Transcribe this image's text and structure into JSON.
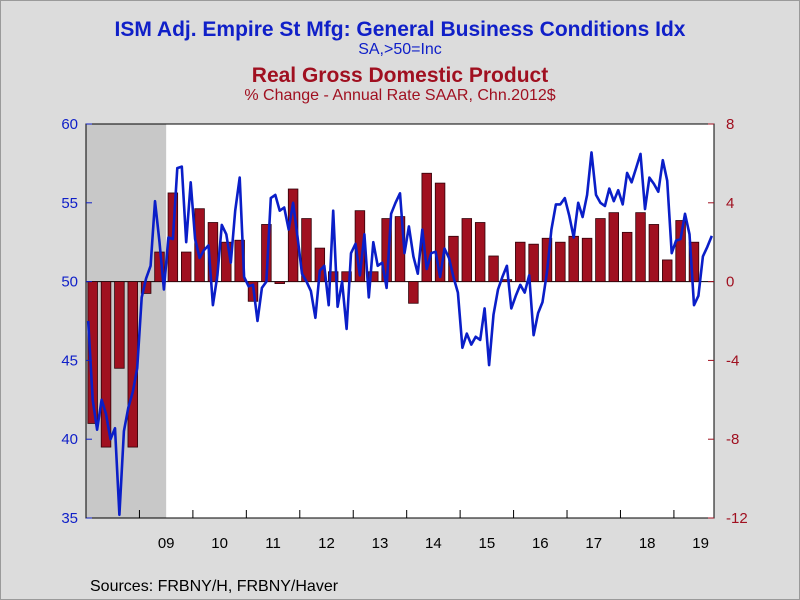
{
  "header": {
    "title_primary": "ISM Adj. Empire St Mfg: General Business Conditions Idx",
    "subtitle_primary": "SA,>50=Inc",
    "title_secondary": "Real Gross Domestic Product",
    "subtitle_secondary": "% Change - Annual Rate     SAAR, Chn.2012$"
  },
  "footer": {
    "sources": "Sources:  FRBNY/H, FRBNY/Haver"
  },
  "chart_data": {
    "type": "bar+line",
    "title": "ISM Adj. Empire St Mfg: General Business Conditions Idx",
    "recession_shading": {
      "start": 2008.0,
      "end": 2009.5
    },
    "x_range": [
      2008.0,
      2019.75
    ],
    "x_tick_labels": [
      "09",
      "10",
      "11",
      "12",
      "13",
      "14",
      "15",
      "16",
      "17",
      "18",
      "19"
    ],
    "left_axis": {
      "series": "Empire State Mfg Index",
      "ylim": [
        35,
        60
      ],
      "ticks": [
        35,
        40,
        45,
        50,
        55,
        60
      ],
      "color": "#1020c8"
    },
    "right_axis": {
      "series": "Real GDP % change",
      "ylim": [
        -12,
        8
      ],
      "ticks": [
        -12,
        -8,
        -4,
        0,
        4,
        8
      ],
      "color": "#a01020"
    },
    "gdp_bars": [
      {
        "q": "2008Q1",
        "value": -7.2
      },
      {
        "q": "2008Q2",
        "value": -8.4
      },
      {
        "q": "2008Q3",
        "value": -4.4
      },
      {
        "q": "2008Q4",
        "value": -8.4
      },
      {
        "q": "2009Q1",
        "value": -0.6
      },
      {
        "q": "2009Q2",
        "value": 1.5
      },
      {
        "q": "2009Q3",
        "value": 4.5
      },
      {
        "q": "2009Q4",
        "value": 1.5
      },
      {
        "q": "2010Q1",
        "value": 3.7
      },
      {
        "q": "2010Q2",
        "value": 3.0
      },
      {
        "q": "2010Q3",
        "value": 2.0
      },
      {
        "q": "2010Q4",
        "value": 2.1
      },
      {
        "q": "2011Q1",
        "value": -1.0
      },
      {
        "q": "2011Q2",
        "value": 2.9
      },
      {
        "q": "2011Q3",
        "value": -0.1
      },
      {
        "q": "2011Q4",
        "value": 4.7
      },
      {
        "q": "2012Q1",
        "value": 3.2
      },
      {
        "q": "2012Q2",
        "value": 1.7
      },
      {
        "q": "2012Q3",
        "value": 0.5
      },
      {
        "q": "2012Q4",
        "value": 0.5
      },
      {
        "q": "2013Q1",
        "value": 3.6
      },
      {
        "q": "2013Q2",
        "value": 0.5
      },
      {
        "q": "2013Q3",
        "value": 3.2
      },
      {
        "q": "2013Q4",
        "value": 3.3
      },
      {
        "q": "2014Q1",
        "value": -1.1
      },
      {
        "q": "2014Q2",
        "value": 5.5
      },
      {
        "q": "2014Q3",
        "value": 5.0
      },
      {
        "q": "2014Q4",
        "value": 2.3
      },
      {
        "q": "2015Q1",
        "value": 3.2
      },
      {
        "q": "2015Q2",
        "value": 3.0
      },
      {
        "q": "2015Q3",
        "value": 1.3
      },
      {
        "q": "2015Q4",
        "value": 0.1
      },
      {
        "q": "2016Q1",
        "value": 2.0
      },
      {
        "q": "2016Q2",
        "value": 1.9
      },
      {
        "q": "2016Q3",
        "value": 2.2
      },
      {
        "q": "2016Q4",
        "value": 2.0
      },
      {
        "q": "2017Q1",
        "value": 2.3
      },
      {
        "q": "2017Q2",
        "value": 2.2
      },
      {
        "q": "2017Q3",
        "value": 3.2
      },
      {
        "q": "2017Q4",
        "value": 3.5
      },
      {
        "q": "2018Q1",
        "value": 2.5
      },
      {
        "q": "2018Q2",
        "value": 3.5
      },
      {
        "q": "2018Q3",
        "value": 2.9
      },
      {
        "q": "2018Q4",
        "value": 1.1
      },
      {
        "q": "2019Q1",
        "value": 3.1
      },
      {
        "q": "2019Q2",
        "value": 2.0
      }
    ],
    "empire_index": {
      "start": 2008.0,
      "step_months": 1,
      "values": [
        47.5,
        42.5,
        40.6,
        42.5,
        41.6,
        40.0,
        40.7,
        35.2,
        40.5,
        42.0,
        43.0,
        44.5,
        49.0,
        50.2,
        51.0,
        55.1,
        52.5,
        49.5,
        52.8,
        52.7,
        57.2,
        57.3,
        52.5,
        56.3,
        52.7,
        51.5,
        52.0,
        52.3,
        48.5,
        50.4,
        53.6,
        53.0,
        51.2,
        54.5,
        56.6,
        50.3,
        49.7,
        49.8,
        47.5,
        49.6,
        50.0,
        55.3,
        55.5,
        54.5,
        54.7,
        53.3,
        55.0,
        52.8,
        50.5,
        50.0,
        49.4,
        47.7,
        50.7,
        51.0,
        48.5,
        54.5,
        48.4,
        50.0,
        47.0,
        51.8,
        52.4,
        50.4,
        53.0,
        49.0,
        52.5,
        51.0,
        51.2,
        49.6,
        54.3,
        55.0,
        55.6,
        51.8,
        53.5,
        51.6,
        50.5,
        53.3,
        50.8,
        51.8,
        51.9,
        50.3,
        52.1,
        51.5,
        50.3,
        49.3,
        45.8,
        46.7,
        46.0,
        46.5,
        46.3,
        48.3,
        44.7,
        47.9,
        49.5,
        50.3,
        51.0,
        48.3,
        49.1,
        49.8,
        49.3,
        50.4,
        46.6,
        48.0,
        48.7,
        50.6,
        53.3,
        54.9,
        54.9,
        55.3,
        54.2,
        52.8,
        55.0,
        54.1,
        55.5,
        58.2,
        55.5,
        55.0,
        54.8,
        55.9,
        55.1,
        55.8,
        54.9,
        56.9,
        56.3,
        57.2,
        58.1,
        54.6,
        56.6,
        56.2,
        55.7,
        57.7,
        56.4,
        51.8,
        52.6,
        52.7,
        54.3,
        53.0,
        48.5,
        49.1,
        51.6,
        52.2,
        52.9
      ]
    }
  }
}
